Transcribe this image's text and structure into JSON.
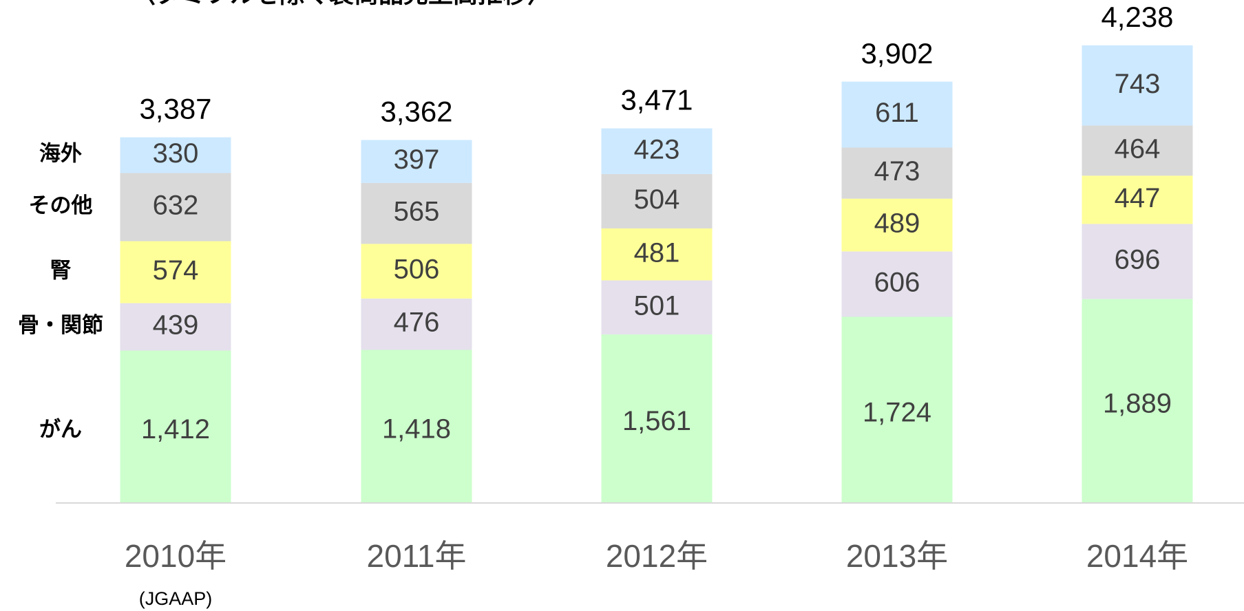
{
  "chart_data": {
    "type": "stacked_bar",
    "title": "〈タミフルを除く製商品売上高推移〉",
    "categories": [
      "2010年",
      "2011年",
      "2012年",
      "2013年",
      "2014年"
    ],
    "note": "(JGAAP)",
    "series": [
      {
        "name": "がん",
        "color": "#ccffcc",
        "values": [
          1412,
          1418,
          1561,
          1724,
          1889
        ],
        "value_labels": [
          "1,412",
          "1,418",
          "1,561",
          "1,724",
          "1,889"
        ]
      },
      {
        "name": "骨・関節",
        "color": "#e5e0ec",
        "values": [
          439,
          476,
          501,
          606,
          696
        ]
      },
      {
        "name": "腎",
        "color": "#ffff99",
        "values": [
          574,
          506,
          481,
          489,
          447
        ]
      },
      {
        "name": "その他",
        "color": "#d9d9d9",
        "values": [
          632,
          565,
          504,
          473,
          464
        ]
      },
      {
        "name": "海外",
        "color": "#cce9ff",
        "values": [
          330,
          397,
          423,
          611,
          743
        ]
      }
    ],
    "totals": {
      "values": [
        3387,
        3362,
        3471,
        3902,
        4238
      ],
      "value_labels": [
        "3,387",
        "3,362",
        "3,471",
        "3,902",
        "4,238"
      ]
    }
  }
}
